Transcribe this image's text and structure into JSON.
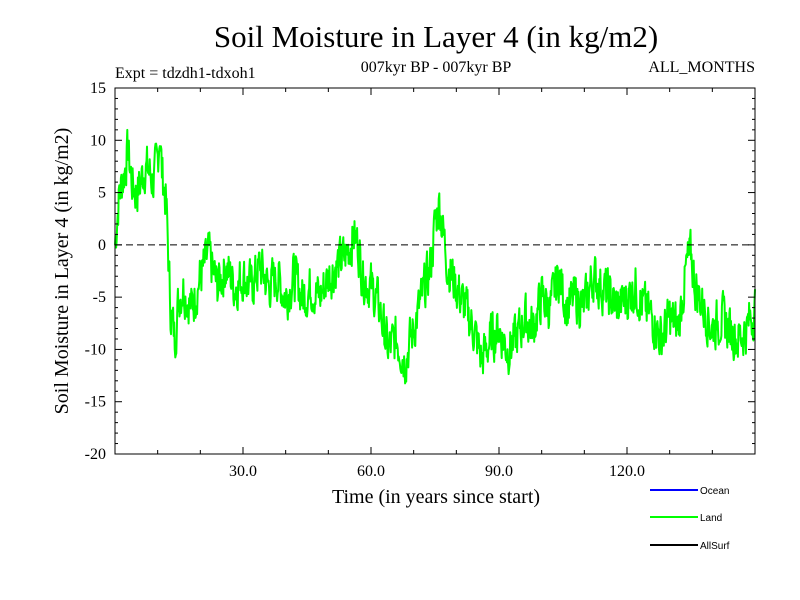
{
  "chart_data": {
    "type": "line",
    "title": "Soil Moisture in Layer 4 (in kg/m2)",
    "subtitle": "007kyr BP - 007kyr BP",
    "expt_label": "Expt = tdzdh1-tdxoh1",
    "period_label": "ALL_MONTHS",
    "xlabel": "Time (in years since start)",
    "ylabel": "Soil Moisture in Layer 4 (in kg/m2)",
    "xlim": [
      0,
      150
    ],
    "ylim": [
      -20,
      15
    ],
    "x_ticks": [
      30,
      60,
      90,
      120
    ],
    "x_tick_labels": [
      "30.0",
      "60.0",
      "90.0",
      "120.0"
    ],
    "y_ticks": [
      15,
      10,
      5,
      0,
      -5,
      -10,
      -15,
      -20
    ],
    "y_tick_labels": [
      "15",
      "10",
      "5",
      "0",
      "-5",
      "-10",
      "-15",
      "-20"
    ],
    "reference_line": 0,
    "colors": {
      "ocean": "#0000ff",
      "land": "#00ff00",
      "allsurf": "#000000",
      "zero_line": "#000000"
    },
    "legend": [
      {
        "name": "Ocean",
        "color": "#0000ff"
      },
      {
        "name": "Land",
        "color": "#00ff00"
      },
      {
        "name": "AllSurf",
        "color": "#000000"
      }
    ],
    "series": [
      {
        "name": "Land",
        "color": "#00ff00",
        "anchors": [
          [
            0,
            0
          ],
          [
            1,
            5
          ],
          [
            2,
            6.5
          ],
          [
            3,
            9
          ],
          [
            4,
            6
          ],
          [
            5,
            5
          ],
          [
            6,
            6
          ],
          [
            7,
            7.5
          ],
          [
            8,
            7
          ],
          [
            9,
            6
          ],
          [
            10,
            8
          ],
          [
            10.5,
            11
          ],
          [
            11,
            7
          ],
          [
            12,
            4
          ],
          [
            13,
            -6
          ],
          [
            14,
            -9
          ],
          [
            15,
            -5
          ],
          [
            16,
            -4
          ],
          [
            18,
            -6
          ],
          [
            20,
            -3
          ],
          [
            22,
            -1
          ],
          [
            24,
            -4
          ],
          [
            26,
            -2
          ],
          [
            28,
            -4
          ],
          [
            30,
            -3
          ],
          [
            32,
            -4
          ],
          [
            34,
            -2
          ],
          [
            36,
            -4
          ],
          [
            38,
            -3
          ],
          [
            40,
            -5
          ],
          [
            42,
            -3
          ],
          [
            44,
            -5
          ],
          [
            46,
            -4
          ],
          [
            48,
            -5
          ],
          [
            50,
            -3
          ],
          [
            52,
            -2
          ],
          [
            54,
            -1
          ],
          [
            56,
            1
          ],
          [
            57,
            0
          ],
          [
            58,
            -3
          ],
          [
            60,
            -4
          ],
          [
            62,
            -6
          ],
          [
            64,
            -10
          ],
          [
            66,
            -9
          ],
          [
            68,
            -11
          ],
          [
            70,
            -8
          ],
          [
            72,
            -5
          ],
          [
            74,
            -2
          ],
          [
            75,
            2
          ],
          [
            76,
            4
          ],
          [
            77,
            1
          ],
          [
            78,
            -2
          ],
          [
            80,
            -4
          ],
          [
            82,
            -6
          ],
          [
            84,
            -8
          ],
          [
            86,
            -11
          ],
          [
            88,
            -9
          ],
          [
            90,
            -8
          ],
          [
            92,
            -10
          ],
          [
            94,
            -9
          ],
          [
            96,
            -7
          ],
          [
            98,
            -8
          ],
          [
            100,
            -5
          ],
          [
            102,
            -6
          ],
          [
            104,
            -3
          ],
          [
            106,
            -6
          ],
          [
            108,
            -5
          ],
          [
            110,
            -6
          ],
          [
            112,
            -3
          ],
          [
            114,
            -4
          ],
          [
            116,
            -5
          ],
          [
            118,
            -6
          ],
          [
            120,
            -5
          ],
          [
            122,
            -4
          ],
          [
            124,
            -6
          ],
          [
            126,
            -7
          ],
          [
            128,
            -9
          ],
          [
            130,
            -7
          ],
          [
            132,
            -8
          ],
          [
            134,
            -2
          ],
          [
            135,
            -1
          ],
          [
            136,
            -4
          ],
          [
            138,
            -6
          ],
          [
            140,
            -8
          ],
          [
            142,
            -7
          ],
          [
            144,
            -8
          ],
          [
            146,
            -9
          ],
          [
            148,
            -8
          ],
          [
            150,
            -6
          ]
        ],
        "noise_amplitude": 3.2,
        "sample_step": 0.125
      }
    ]
  }
}
